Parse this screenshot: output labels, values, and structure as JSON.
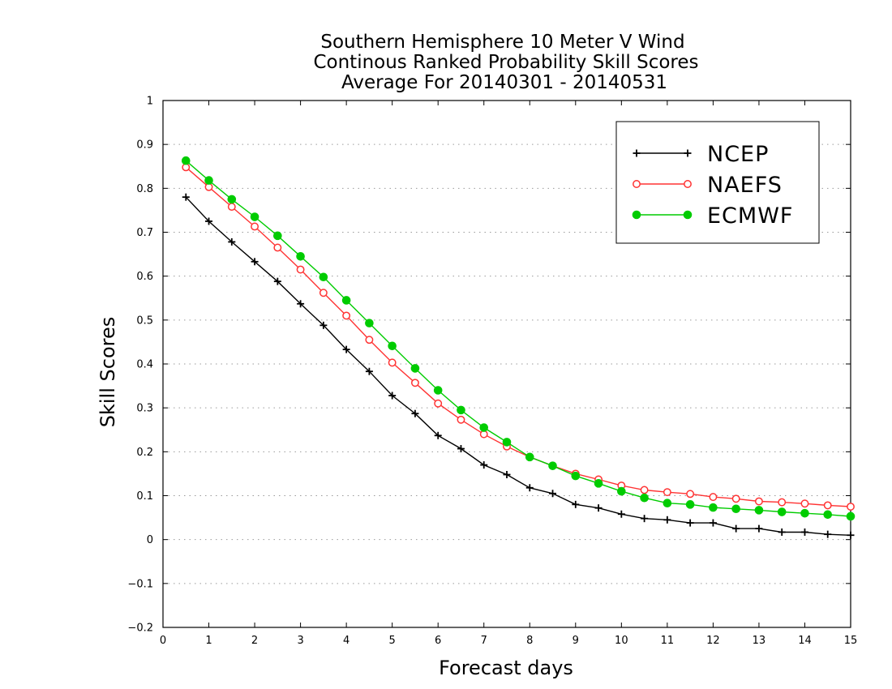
{
  "chart_data": {
    "type": "line",
    "title": [
      "Southern Hemisphere 10 Meter V Wind",
      "Continous Ranked Probability Skill Scores",
      "Average For 20140301 - 20140531"
    ],
    "xlabel": "Forecast days",
    "ylabel": "Skill Scores",
    "xlim": [
      0,
      15
    ],
    "ylim": [
      -0.2,
      1
    ],
    "xticks": [
      0,
      1,
      2,
      3,
      4,
      5,
      6,
      7,
      8,
      9,
      10,
      11,
      12,
      13,
      14,
      15
    ],
    "xtick_labels": [
      "0",
      "1",
      "2",
      "3",
      "4",
      "5",
      "6",
      "7",
      "8",
      "9",
      "10",
      "11",
      "12",
      "13",
      "14",
      "15"
    ],
    "yticks": [
      -0.2,
      -0.1,
      0,
      0.1,
      0.2,
      0.3,
      0.4,
      0.5,
      0.6,
      0.7,
      0.8,
      0.9,
      1
    ],
    "ytick_labels": [
      "−0.2",
      "−0.1",
      "0",
      "0.1",
      "0.2",
      "0.3",
      "0.4",
      "0.5",
      "0.6",
      "0.7",
      "0.8",
      "0.9",
      "1"
    ],
    "grid": "horizontal dotted",
    "legend_position": "top-right",
    "x": [
      0.5,
      1,
      1.5,
      2,
      2.5,
      3,
      3.5,
      4,
      4.5,
      5,
      5.5,
      6,
      6.5,
      7,
      7.5,
      8,
      8.5,
      9,
      9.5,
      10,
      10.5,
      11,
      11.5,
      12,
      12.5,
      13,
      13.5,
      14,
      14.5,
      15
    ],
    "series": [
      {
        "name": "NCEP",
        "color": "#000000",
        "marker": "plus",
        "values": [
          0.78,
          0.725,
          0.678,
          0.633,
          0.588,
          0.537,
          0.488,
          0.433,
          0.383,
          0.328,
          0.287,
          0.237,
          0.207,
          0.17,
          0.148,
          0.118,
          0.105,
          0.08,
          0.072,
          0.058,
          0.048,
          0.045,
          0.038,
          0.038,
          0.025,
          0.025,
          0.017,
          0.017,
          0.012,
          0.01
        ]
      },
      {
        "name": "NAEFS",
        "color": "#ff3333",
        "marker": "open-circle",
        "values": [
          0.848,
          0.803,
          0.758,
          0.713,
          0.665,
          0.615,
          0.562,
          0.51,
          0.455,
          0.403,
          0.357,
          0.31,
          0.273,
          0.24,
          0.212,
          0.188,
          0.168,
          0.15,
          0.137,
          0.123,
          0.113,
          0.108,
          0.104,
          0.097,
          0.093,
          0.087,
          0.085,
          0.082,
          0.078,
          0.075
        ]
      },
      {
        "name": "ECMWF",
        "color": "#00cc00",
        "marker": "filled-circle",
        "values": [
          0.863,
          0.818,
          0.775,
          0.735,
          0.692,
          0.645,
          0.598,
          0.545,
          0.493,
          0.441,
          0.39,
          0.34,
          0.295,
          0.255,
          0.222,
          0.188,
          0.168,
          0.145,
          0.128,
          0.11,
          0.095,
          0.083,
          0.08,
          0.073,
          0.07,
          0.067,
          0.063,
          0.06,
          0.057,
          0.053
        ]
      }
    ]
  }
}
